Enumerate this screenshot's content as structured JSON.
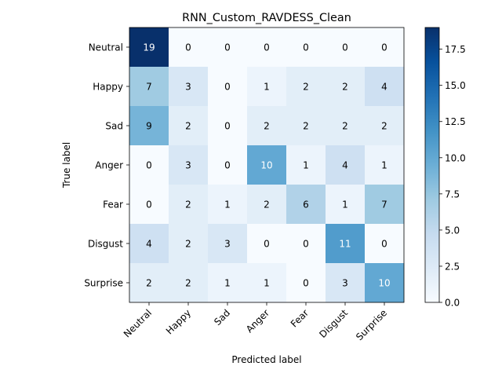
{
  "chart_data": {
    "type": "heatmap",
    "title": "RNN_Custom_RAVDESS_Clean",
    "xlabel": "Predicted label",
    "ylabel": "True label",
    "x_categories": [
      "Neutral",
      "Happy",
      "Sad",
      "Anger",
      "Fear",
      "Disgust",
      "Surprise"
    ],
    "y_categories": [
      "Neutral",
      "Happy",
      "Sad",
      "Anger",
      "Fear",
      "Disgust",
      "Surprise"
    ],
    "matrix": [
      [
        19,
        0,
        0,
        0,
        0,
        0,
        0
      ],
      [
        7,
        3,
        0,
        1,
        2,
        2,
        4
      ],
      [
        9,
        2,
        0,
        2,
        2,
        2,
        2
      ],
      [
        0,
        3,
        0,
        10,
        1,
        4,
        1
      ],
      [
        0,
        2,
        1,
        2,
        6,
        1,
        7
      ],
      [
        4,
        2,
        3,
        0,
        0,
        11,
        0
      ],
      [
        2,
        2,
        1,
        1,
        0,
        3,
        10
      ]
    ],
    "colorbar": {
      "min": 0,
      "max": 19,
      "ticks": [
        "0.0",
        "2.5",
        "5.0",
        "7.5",
        "10.0",
        "12.5",
        "15.0",
        "17.5"
      ],
      "colormap": "Blues"
    },
    "grid": false
  }
}
